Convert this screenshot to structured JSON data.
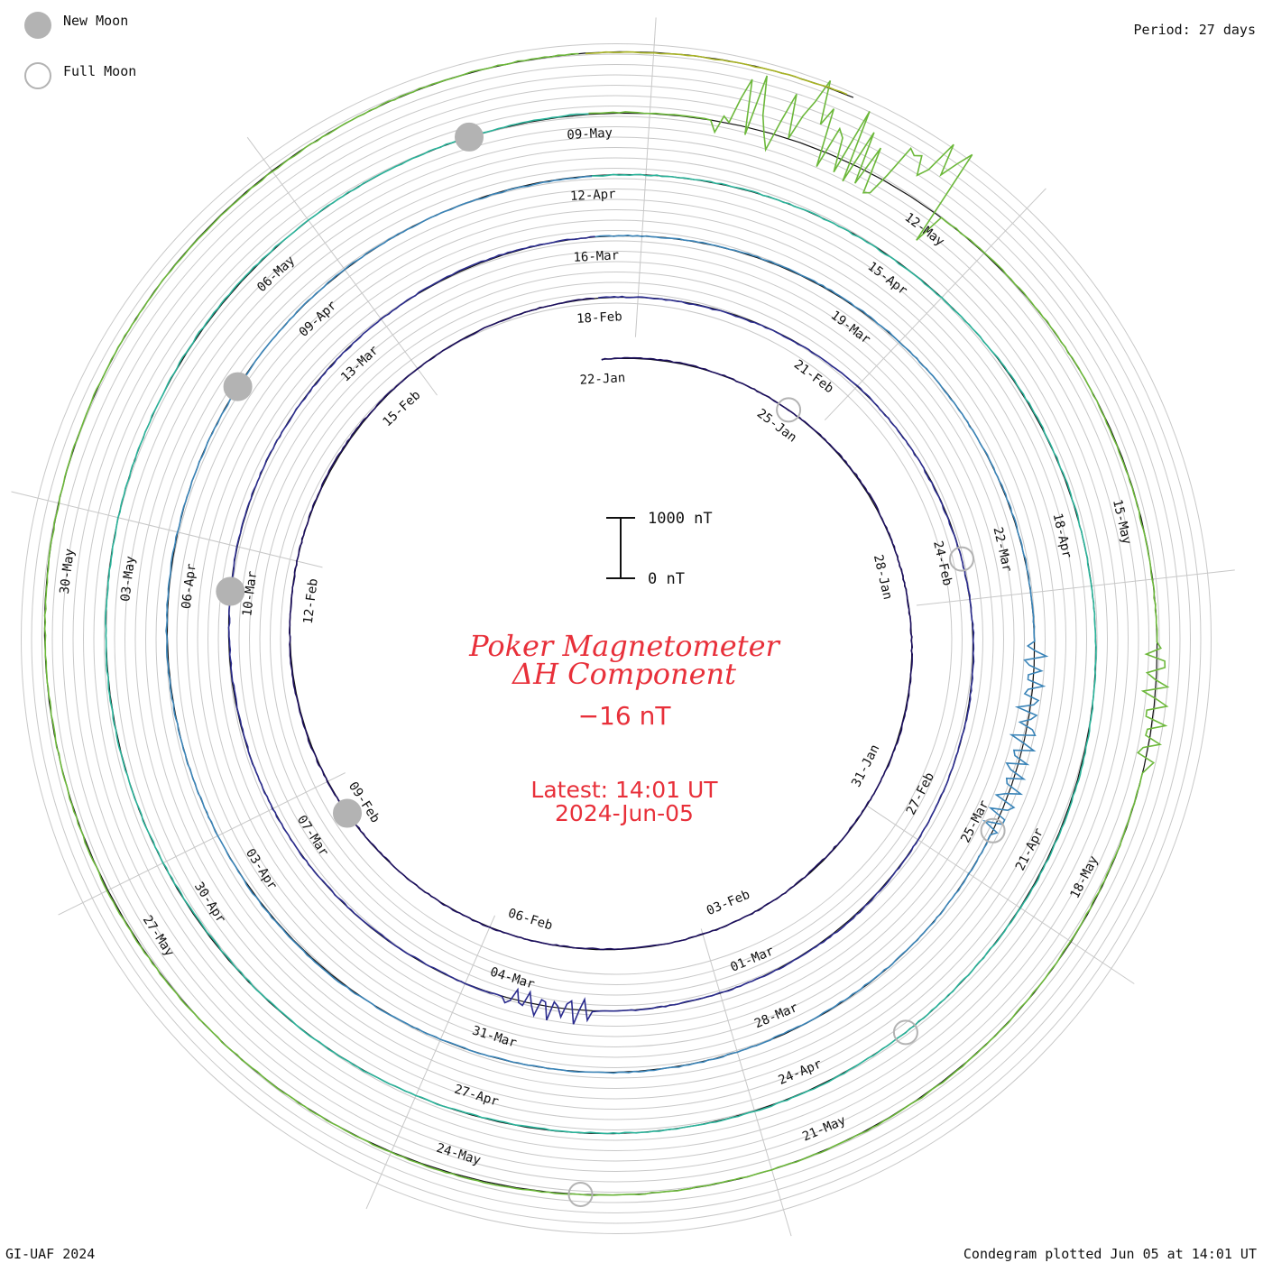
{
  "header": {
    "new_moon_label": "New Moon",
    "full_moon_label": "Full Moon",
    "period_label": "Period: 27 days"
  },
  "center": {
    "title_line1": "Poker Magnetometer",
    "title_line2": "ΔH Component",
    "current_value": "−16 nT",
    "latest_line1": "Latest: 14:01 UT",
    "latest_line2": "2024-Jun-05"
  },
  "scale_bar": {
    "top_label": "1000 nT",
    "bottom_label": "0 nT"
  },
  "footer": {
    "credit": "GI-UAF 2024",
    "plotted": "Condegram plotted Jun 05 at 14:01 UT"
  },
  "colors": {
    "accent": "#e8303a",
    "grid": "#c8c8c8",
    "moon_fill": "#b3b3b3",
    "cycles": [
      "#1c0f5e",
      "#2b2c8e",
      "#3a84b8",
      "#2ab39a",
      "#6cb83a",
      "#a8b324",
      "#b89a1a",
      "#b8601a",
      "#b82a1a"
    ]
  },
  "chart_data": {
    "type": "line",
    "chart_style": "condegram (spiral, one 27-day rotation per ring, clockwise)",
    "period_days": 27,
    "unit": "nT",
    "scale_bar_values": [
      0,
      1000
    ],
    "start_date": "22-Jan",
    "latest": "2024-Jun-05 14:01 UT",
    "date_labels": [
      "22-Jan",
      "25-Jan",
      "28-Jan",
      "31-Jan",
      "03-Feb",
      "06-Feb",
      "09-Feb",
      "12-Feb",
      "15-Feb",
      "18-Feb",
      "21-Feb",
      "24-Feb",
      "27-Feb",
      "01-Mar",
      "04-Mar",
      "07-Mar",
      "10-Mar",
      "13-Mar",
      "16-Mar",
      "19-Mar",
      "22-Mar",
      "25-Mar",
      "28-Mar",
      "31-Mar",
      "03-Apr",
      "06-Apr",
      "09-Apr",
      "12-Apr",
      "15-Apr",
      "18-Apr",
      "21-Apr",
      "24-Apr",
      "27-Apr",
      "30-Apr",
      "03-May",
      "06-May",
      "09-May",
      "12-May",
      "15-May",
      "18-May",
      "21-May",
      "24-May",
      "27-May",
      "30-May"
    ],
    "moon_phases": [
      {
        "phase": "Full Moon",
        "date": "25-Jan"
      },
      {
        "phase": "New Moon",
        "date": "09-Feb"
      },
      {
        "phase": "Full Moon",
        "date": "24-Feb"
      },
      {
        "phase": "New Moon",
        "date": "10-Mar"
      },
      {
        "phase": "Full Moon",
        "date": "25-Mar"
      },
      {
        "phase": "New Moon",
        "date": "08-Apr"
      },
      {
        "phase": "Full Moon",
        "date": "23-Apr"
      },
      {
        "phase": "New Moon",
        "date": "08-May"
      },
      {
        "phase": "Full Moon",
        "date": "23-May"
      }
    ],
    "disturbances": [
      {
        "date": "10-May",
        "description": "major storm, ΔH swings up to about 1000 nT"
      },
      {
        "date": "11-May",
        "description": "storm continues, large oscillations"
      },
      {
        "date": "16-May",
        "description": "moderate disturbance"
      },
      {
        "date": "23-Mar",
        "description": "moderate disturbance"
      },
      {
        "date": "24-Mar",
        "description": "moderate disturbance"
      },
      {
        "date": "03-Mar",
        "description": "moderate disturbance"
      }
    ]
  }
}
